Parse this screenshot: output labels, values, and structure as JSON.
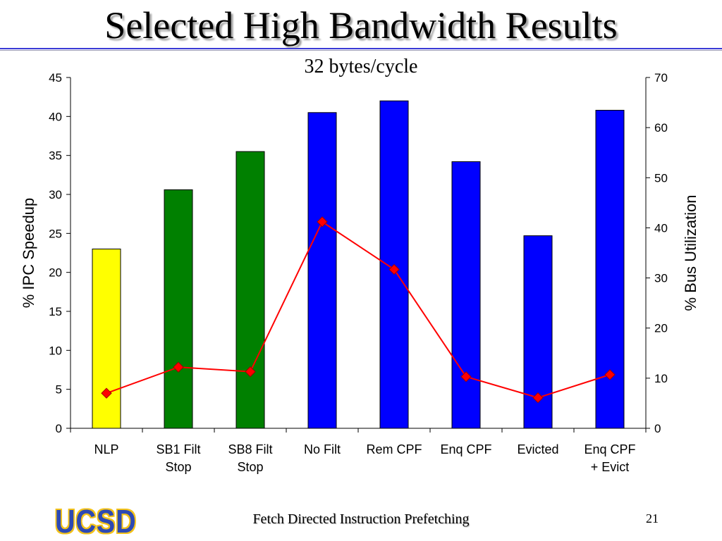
{
  "slide": {
    "title": "Selected High Bandwidth Results",
    "footer_logo": "UCSD",
    "footer_text": "Fetch Directed Instruction Prefetching",
    "page_number": "21"
  },
  "chart_data": {
    "type": "bar",
    "title": "32 bytes/cycle",
    "ylabel": "% IPC Speedup",
    "y2label": "% Bus Utilization",
    "ylim": [
      0,
      45
    ],
    "yticks": [
      0,
      5,
      10,
      15,
      20,
      25,
      30,
      35,
      40,
      45
    ],
    "y2lim": [
      0,
      70
    ],
    "y2ticks": [
      0,
      10,
      20,
      30,
      40,
      50,
      60,
      70
    ],
    "categories": [
      [
        "NLP"
      ],
      [
        "SB1 Filt",
        "Stop"
      ],
      [
        "SB8 Filt",
        "Stop"
      ],
      [
        "No Filt"
      ],
      [
        "Rem CPF"
      ],
      [
        "Enq CPF"
      ],
      [
        "Evicted"
      ],
      [
        "Enq CPF",
        "+ Evict"
      ]
    ],
    "series": [
      {
        "type": "bar",
        "axis": "left",
        "values": [
          23.0,
          30.6,
          35.5,
          40.5,
          42.0,
          34.2,
          24.7,
          40.8
        ],
        "colors": [
          "#ffff00",
          "#008000",
          "#008000",
          "#0000ff",
          "#0000ff",
          "#0000ff",
          "#0000ff",
          "#0000ff"
        ]
      },
      {
        "type": "line",
        "axis": "right",
        "values": [
          7.0,
          12.2,
          11.3,
          41.2,
          31.7,
          10.3,
          6.1,
          10.7
        ],
        "color": "#ff0000"
      }
    ],
    "grid": false,
    "legend": "none"
  }
}
